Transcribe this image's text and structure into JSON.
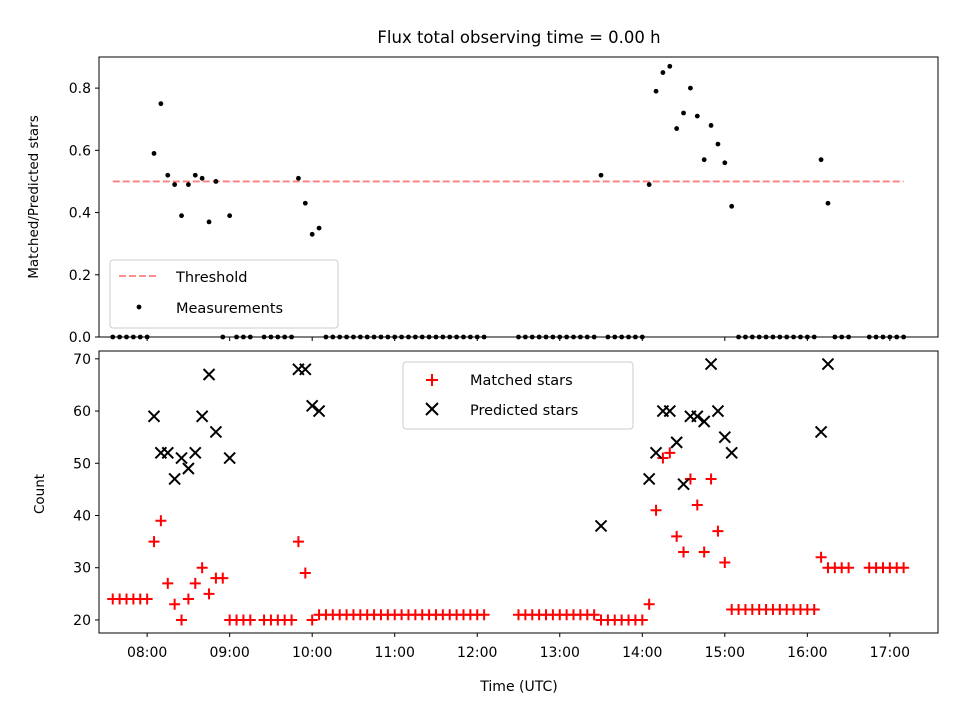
{
  "title": "Flux total observing time = 0.00 h",
  "colors": {
    "threshold": "#ff7f7f",
    "measurements": "#000000",
    "matched": "#ff0000",
    "predicted": "#000000"
  },
  "chart_data": [
    {
      "type": "scatter",
      "ylabel": "Matched/Predicted stars",
      "ylim": [
        0,
        0.9
      ],
      "yticks": [
        "0.0",
        "0.2",
        "0.4",
        "0.6",
        "0.8"
      ],
      "grid": false,
      "legend_position": "lower-left",
      "legend": [
        {
          "label": "Threshold",
          "style": "dashed-line"
        },
        {
          "label": "Measurements",
          "style": "dot"
        }
      ],
      "threshold_line": {
        "y": 0.5,
        "x_start": "07:35",
        "x_end": "17:10"
      },
      "measurements": [
        {
          "x": "07:35",
          "y": 0
        },
        {
          "x": "07:40",
          "y": 0
        },
        {
          "x": "07:45",
          "y": 0
        },
        {
          "x": "07:50",
          "y": 0
        },
        {
          "x": "07:55",
          "y": 0
        },
        {
          "x": "08:00",
          "y": 0
        },
        {
          "x": "08:05",
          "y": 0.59
        },
        {
          "x": "08:10",
          "y": 0.75
        },
        {
          "x": "08:15",
          "y": 0.52
        },
        {
          "x": "08:20",
          "y": 0.49
        },
        {
          "x": "08:25",
          "y": 0.39
        },
        {
          "x": "08:30",
          "y": 0.49
        },
        {
          "x": "08:35",
          "y": 0.52
        },
        {
          "x": "08:40",
          "y": 0.51
        },
        {
          "x": "08:45",
          "y": 0.37
        },
        {
          "x": "08:50",
          "y": 0.5
        },
        {
          "x": "08:55",
          "y": 0
        },
        {
          "x": "09:00",
          "y": 0.39
        },
        {
          "x": "09:05",
          "y": 0
        },
        {
          "x": "09:10",
          "y": 0
        },
        {
          "x": "09:15",
          "y": 0
        },
        {
          "x": "09:25",
          "y": 0
        },
        {
          "x": "09:30",
          "y": 0
        },
        {
          "x": "09:35",
          "y": 0
        },
        {
          "x": "09:40",
          "y": 0
        },
        {
          "x": "09:45",
          "y": 0
        },
        {
          "x": "09:50",
          "y": 0.51
        },
        {
          "x": "09:55",
          "y": 0.43
        },
        {
          "x": "10:00",
          "y": 0.33
        },
        {
          "x": "10:05",
          "y": 0.35
        },
        {
          "x": "10:10",
          "y": 0
        },
        {
          "x": "10:15",
          "y": 0
        },
        {
          "x": "10:20",
          "y": 0
        },
        {
          "x": "10:25",
          "y": 0
        },
        {
          "x": "10:30",
          "y": 0
        },
        {
          "x": "10:35",
          "y": 0
        },
        {
          "x": "10:40",
          "y": 0
        },
        {
          "x": "10:45",
          "y": 0
        },
        {
          "x": "10:50",
          "y": 0
        },
        {
          "x": "10:55",
          "y": 0
        },
        {
          "x": "11:00",
          "y": 0
        },
        {
          "x": "11:05",
          "y": 0
        },
        {
          "x": "11:10",
          "y": 0
        },
        {
          "x": "11:15",
          "y": 0
        },
        {
          "x": "11:20",
          "y": 0
        },
        {
          "x": "11:25",
          "y": 0
        },
        {
          "x": "11:30",
          "y": 0
        },
        {
          "x": "11:35",
          "y": 0
        },
        {
          "x": "11:40",
          "y": 0
        },
        {
          "x": "11:45",
          "y": 0
        },
        {
          "x": "11:50",
          "y": 0
        },
        {
          "x": "11:55",
          "y": 0
        },
        {
          "x": "12:00",
          "y": 0
        },
        {
          "x": "12:05",
          "y": 0
        },
        {
          "x": "12:30",
          "y": 0
        },
        {
          "x": "12:35",
          "y": 0
        },
        {
          "x": "12:40",
          "y": 0
        },
        {
          "x": "12:45",
          "y": 0
        },
        {
          "x": "12:50",
          "y": 0
        },
        {
          "x": "12:55",
          "y": 0
        },
        {
          "x": "13:00",
          "y": 0
        },
        {
          "x": "13:05",
          "y": 0
        },
        {
          "x": "13:10",
          "y": 0
        },
        {
          "x": "13:15",
          "y": 0
        },
        {
          "x": "13:20",
          "y": 0
        },
        {
          "x": "13:25",
          "y": 0
        },
        {
          "x": "13:30",
          "y": 0.52
        },
        {
          "x": "13:35",
          "y": 0
        },
        {
          "x": "13:40",
          "y": 0
        },
        {
          "x": "13:45",
          "y": 0
        },
        {
          "x": "13:50",
          "y": 0
        },
        {
          "x": "13:55",
          "y": 0
        },
        {
          "x": "14:00",
          "y": 0
        },
        {
          "x": "14:05",
          "y": 0.49
        },
        {
          "x": "14:10",
          "y": 0.79
        },
        {
          "x": "14:15",
          "y": 0.85
        },
        {
          "x": "14:20",
          "y": 0.87
        },
        {
          "x": "14:25",
          "y": 0.67
        },
        {
          "x": "14:30",
          "y": 0.72
        },
        {
          "x": "14:35",
          "y": 0.8
        },
        {
          "x": "14:40",
          "y": 0.71
        },
        {
          "x": "14:45",
          "y": 0.57
        },
        {
          "x": "14:50",
          "y": 0.68
        },
        {
          "x": "14:55",
          "y": 0.62
        },
        {
          "x": "15:00",
          "y": 0.56
        },
        {
          "x": "15:05",
          "y": 0.42
        },
        {
          "x": "15:10",
          "y": 0
        },
        {
          "x": "15:15",
          "y": 0
        },
        {
          "x": "15:20",
          "y": 0
        },
        {
          "x": "15:25",
          "y": 0
        },
        {
          "x": "15:30",
          "y": 0
        },
        {
          "x": "15:35",
          "y": 0
        },
        {
          "x": "15:40",
          "y": 0
        },
        {
          "x": "15:45",
          "y": 0
        },
        {
          "x": "15:50",
          "y": 0
        },
        {
          "x": "15:55",
          "y": 0
        },
        {
          "x": "16:00",
          "y": 0
        },
        {
          "x": "16:05",
          "y": 0
        },
        {
          "x": "16:10",
          "y": 0.57
        },
        {
          "x": "16:15",
          "y": 0.43
        },
        {
          "x": "16:20",
          "y": 0
        },
        {
          "x": "16:25",
          "y": 0
        },
        {
          "x": "16:30",
          "y": 0
        },
        {
          "x": "16:45",
          "y": 0
        },
        {
          "x": "16:50",
          "y": 0
        },
        {
          "x": "16:55",
          "y": 0
        },
        {
          "x": "17:00",
          "y": 0
        },
        {
          "x": "17:05",
          "y": 0
        },
        {
          "x": "17:10",
          "y": 0
        }
      ]
    },
    {
      "type": "scatter",
      "xlabel": "Time (UTC)",
      "ylabel": "Count",
      "ylim": [
        17.5,
        71.5
      ],
      "yticks": [
        "20",
        "30",
        "40",
        "50",
        "60",
        "70"
      ],
      "xticks": [
        "08:00",
        "09:00",
        "10:00",
        "11:00",
        "12:00",
        "13:00",
        "14:00",
        "15:00",
        "16:00",
        "17:00"
      ],
      "xlim": [
        "07:25",
        "17:35"
      ],
      "grid": false,
      "legend_position": "upper-center",
      "legend": [
        {
          "label": "Matched stars",
          "style": "plus"
        },
        {
          "label": "Predicted stars",
          "style": "x"
        }
      ],
      "matched": [
        {
          "x": "07:35",
          "y": 24
        },
        {
          "x": "07:40",
          "y": 24
        },
        {
          "x": "07:45",
          "y": 24
        },
        {
          "x": "07:50",
          "y": 24
        },
        {
          "x": "07:55",
          "y": 24
        },
        {
          "x": "08:00",
          "y": 24
        },
        {
          "x": "08:05",
          "y": 35
        },
        {
          "x": "08:10",
          "y": 39
        },
        {
          "x": "08:15",
          "y": 27
        },
        {
          "x": "08:20",
          "y": 23
        },
        {
          "x": "08:25",
          "y": 20
        },
        {
          "x": "08:30",
          "y": 24
        },
        {
          "x": "08:35",
          "y": 27
        },
        {
          "x": "08:40",
          "y": 30
        },
        {
          "x": "08:45",
          "y": 25
        },
        {
          "x": "08:50",
          "y": 28
        },
        {
          "x": "08:55",
          "y": 28
        },
        {
          "x": "09:00",
          "y": 20
        },
        {
          "x": "09:05",
          "y": 20
        },
        {
          "x": "09:10",
          "y": 20
        },
        {
          "x": "09:15",
          "y": 20
        },
        {
          "x": "09:25",
          "y": 20
        },
        {
          "x": "09:30",
          "y": 20
        },
        {
          "x": "09:35",
          "y": 20
        },
        {
          "x": "09:40",
          "y": 20
        },
        {
          "x": "09:45",
          "y": 20
        },
        {
          "x": "09:50",
          "y": 35
        },
        {
          "x": "09:55",
          "y": 29
        },
        {
          "x": "10:00",
          "y": 20
        },
        {
          "x": "10:05",
          "y": 21
        },
        {
          "x": "10:10",
          "y": 21
        },
        {
          "x": "10:15",
          "y": 21
        },
        {
          "x": "10:20",
          "y": 21
        },
        {
          "x": "10:25",
          "y": 21
        },
        {
          "x": "10:30",
          "y": 21
        },
        {
          "x": "10:35",
          "y": 21
        },
        {
          "x": "10:40",
          "y": 21
        },
        {
          "x": "10:45",
          "y": 21
        },
        {
          "x": "10:50",
          "y": 21
        },
        {
          "x": "10:55",
          "y": 21
        },
        {
          "x": "11:00",
          "y": 21
        },
        {
          "x": "11:05",
          "y": 21
        },
        {
          "x": "11:10",
          "y": 21
        },
        {
          "x": "11:15",
          "y": 21
        },
        {
          "x": "11:20",
          "y": 21
        },
        {
          "x": "11:25",
          "y": 21
        },
        {
          "x": "11:30",
          "y": 21
        },
        {
          "x": "11:35",
          "y": 21
        },
        {
          "x": "11:40",
          "y": 21
        },
        {
          "x": "11:45",
          "y": 21
        },
        {
          "x": "11:50",
          "y": 21
        },
        {
          "x": "11:55",
          "y": 21
        },
        {
          "x": "12:00",
          "y": 21
        },
        {
          "x": "12:05",
          "y": 21
        },
        {
          "x": "12:30",
          "y": 21
        },
        {
          "x": "12:35",
          "y": 21
        },
        {
          "x": "12:40",
          "y": 21
        },
        {
          "x": "12:45",
          "y": 21
        },
        {
          "x": "12:50",
          "y": 21
        },
        {
          "x": "12:55",
          "y": 21
        },
        {
          "x": "13:00",
          "y": 21
        },
        {
          "x": "13:05",
          "y": 21
        },
        {
          "x": "13:10",
          "y": 21
        },
        {
          "x": "13:15",
          "y": 21
        },
        {
          "x": "13:20",
          "y": 21
        },
        {
          "x": "13:25",
          "y": 21
        },
        {
          "x": "13:30",
          "y": 20
        },
        {
          "x": "13:35",
          "y": 20
        },
        {
          "x": "13:40",
          "y": 20
        },
        {
          "x": "13:45",
          "y": 20
        },
        {
          "x": "13:50",
          "y": 20
        },
        {
          "x": "13:55",
          "y": 20
        },
        {
          "x": "14:00",
          "y": 20
        },
        {
          "x": "14:05",
          "y": 23
        },
        {
          "x": "14:10",
          "y": 41
        },
        {
          "x": "14:15",
          "y": 51
        },
        {
          "x": "14:20",
          "y": 52
        },
        {
          "x": "14:25",
          "y": 36
        },
        {
          "x": "14:30",
          "y": 33
        },
        {
          "x": "14:35",
          "y": 47
        },
        {
          "x": "14:40",
          "y": 42
        },
        {
          "x": "14:45",
          "y": 33
        },
        {
          "x": "14:50",
          "y": 47
        },
        {
          "x": "14:55",
          "y": 37
        },
        {
          "x": "15:00",
          "y": 31
        },
        {
          "x": "15:05",
          "y": 22
        },
        {
          "x": "15:10",
          "y": 22
        },
        {
          "x": "15:15",
          "y": 22
        },
        {
          "x": "15:20",
          "y": 22
        },
        {
          "x": "15:25",
          "y": 22
        },
        {
          "x": "15:30",
          "y": 22
        },
        {
          "x": "15:35",
          "y": 22
        },
        {
          "x": "15:40",
          "y": 22
        },
        {
          "x": "15:45",
          "y": 22
        },
        {
          "x": "15:50",
          "y": 22
        },
        {
          "x": "15:55",
          "y": 22
        },
        {
          "x": "16:00",
          "y": 22
        },
        {
          "x": "16:05",
          "y": 22
        },
        {
          "x": "16:10",
          "y": 32
        },
        {
          "x": "16:15",
          "y": 30
        },
        {
          "x": "16:20",
          "y": 30
        },
        {
          "x": "16:25",
          "y": 30
        },
        {
          "x": "16:30",
          "y": 30
        },
        {
          "x": "16:45",
          "y": 30
        },
        {
          "x": "16:50",
          "y": 30
        },
        {
          "x": "16:55",
          "y": 30
        },
        {
          "x": "17:00",
          "y": 30
        },
        {
          "x": "17:05",
          "y": 30
        },
        {
          "x": "17:10",
          "y": 30
        }
      ],
      "predicted": [
        {
          "x": "08:05",
          "y": 59
        },
        {
          "x": "08:10",
          "y": 52
        },
        {
          "x": "08:15",
          "y": 52
        },
        {
          "x": "08:20",
          "y": 47
        },
        {
          "x": "08:25",
          "y": 51
        },
        {
          "x": "08:30",
          "y": 49
        },
        {
          "x": "08:35",
          "y": 52
        },
        {
          "x": "08:40",
          "y": 59
        },
        {
          "x": "08:45",
          "y": 67
        },
        {
          "x": "08:50",
          "y": 56
        },
        {
          "x": "09:00",
          "y": 51
        },
        {
          "x": "09:50",
          "y": 68
        },
        {
          "x": "09:55",
          "y": 68
        },
        {
          "x": "10:00",
          "y": 61
        },
        {
          "x": "10:05",
          "y": 60
        },
        {
          "x": "13:30",
          "y": 38
        },
        {
          "x": "14:05",
          "y": 47
        },
        {
          "x": "14:10",
          "y": 52
        },
        {
          "x": "14:15",
          "y": 60
        },
        {
          "x": "14:20",
          "y": 60
        },
        {
          "x": "14:25",
          "y": 54
        },
        {
          "x": "14:30",
          "y": 46
        },
        {
          "x": "14:35",
          "y": 59
        },
        {
          "x": "14:40",
          "y": 59
        },
        {
          "x": "14:45",
          "y": 58
        },
        {
          "x": "14:50",
          "y": 69
        },
        {
          "x": "14:55",
          "y": 60
        },
        {
          "x": "15:00",
          "y": 55
        },
        {
          "x": "15:05",
          "y": 52
        },
        {
          "x": "16:10",
          "y": 56
        },
        {
          "x": "16:15",
          "y": 69
        }
      ]
    }
  ]
}
